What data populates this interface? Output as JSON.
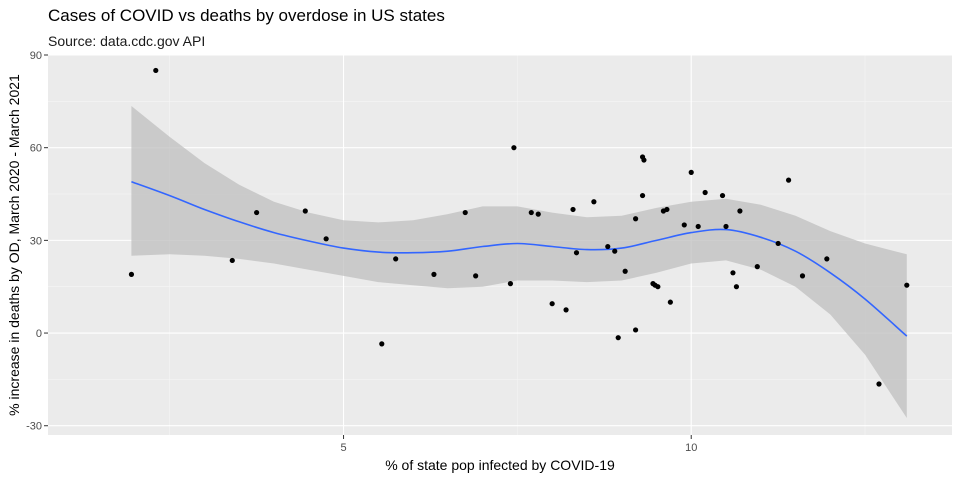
{
  "chart_data": {
    "type": "scatter",
    "title": "Cases of COVID vs deaths by overdose in US states",
    "subtitle": "Source: data.cdc.gov API",
    "xlabel": "% of state pop infected by COVID-19",
    "ylabel": "% increase in deaths by OD, March 2020 - March 2021",
    "xlim": [
      0.75,
      13.75
    ],
    "ylim": [
      -33,
      90
    ],
    "x_ticks": [
      5,
      10
    ],
    "y_ticks": [
      -30,
      0,
      30,
      60,
      90
    ],
    "grid": true,
    "points": [
      {
        "x": 1.95,
        "y": 19.0
      },
      {
        "x": 2.3,
        "y": 85.0
      },
      {
        "x": 3.4,
        "y": 23.5
      },
      {
        "x": 3.75,
        "y": 39.0
      },
      {
        "x": 4.45,
        "y": 39.5
      },
      {
        "x": 4.75,
        "y": 30.5
      },
      {
        "x": 5.55,
        "y": -3.5
      },
      {
        "x": 5.75,
        "y": 24.0
      },
      {
        "x": 6.3,
        "y": 19.0
      },
      {
        "x": 6.75,
        "y": 39.0
      },
      {
        "x": 6.9,
        "y": 18.5
      },
      {
        "x": 7.4,
        "y": 16.0
      },
      {
        "x": 7.45,
        "y": 60.0
      },
      {
        "x": 7.7,
        "y": 39.0
      },
      {
        "x": 7.8,
        "y": 38.5
      },
      {
        "x": 8.0,
        "y": 9.5
      },
      {
        "x": 8.2,
        "y": 7.5
      },
      {
        "x": 8.3,
        "y": 40.0
      },
      {
        "x": 8.35,
        "y": 26.0
      },
      {
        "x": 8.6,
        "y": 42.5
      },
      {
        "x": 8.8,
        "y": 28.0
      },
      {
        "x": 8.9,
        "y": 26.5
      },
      {
        "x": 8.95,
        "y": -1.5
      },
      {
        "x": 9.05,
        "y": 20.0
      },
      {
        "x": 9.2,
        "y": 37.0
      },
      {
        "x": 9.2,
        "y": 1.0
      },
      {
        "x": 9.3,
        "y": 57.0
      },
      {
        "x": 9.32,
        "y": 56.0
      },
      {
        "x": 9.3,
        "y": 44.5
      },
      {
        "x": 9.45,
        "y": 16.0
      },
      {
        "x": 9.48,
        "y": 15.5
      },
      {
        "x": 9.52,
        "y": 15.0
      },
      {
        "x": 9.6,
        "y": 39.5
      },
      {
        "x": 9.65,
        "y": 40.0
      },
      {
        "x": 9.7,
        "y": 10.0
      },
      {
        "x": 9.9,
        "y": 35.0
      },
      {
        "x": 10.0,
        "y": 52.0
      },
      {
        "x": 10.1,
        "y": 34.5
      },
      {
        "x": 10.2,
        "y": 45.5
      },
      {
        "x": 10.45,
        "y": 44.5
      },
      {
        "x": 10.5,
        "y": 34.5
      },
      {
        "x": 10.6,
        "y": 19.5
      },
      {
        "x": 10.65,
        "y": 15.0
      },
      {
        "x": 10.7,
        "y": 39.5
      },
      {
        "x": 10.95,
        "y": 21.5
      },
      {
        "x": 11.25,
        "y": 29.0
      },
      {
        "x": 11.4,
        "y": 49.5
      },
      {
        "x": 11.6,
        "y": 18.5
      },
      {
        "x": 11.95,
        "y": 24.0
      },
      {
        "x": 12.7,
        "y": -16.5
      },
      {
        "x": 13.1,
        "y": 15.5
      }
    ],
    "smooth": {
      "x": [
        1.95,
        2.5,
        3.0,
        3.5,
        4.0,
        4.5,
        5.0,
        5.5,
        6.0,
        6.5,
        7.0,
        7.5,
        8.0,
        8.5,
        9.0,
        9.5,
        10.0,
        10.5,
        11.0,
        11.5,
        12.0,
        12.5,
        13.1
      ],
      "y": [
        49.0,
        44.5,
        40.0,
        36.0,
        32.5,
        29.8,
        27.5,
        26.2,
        26.0,
        26.5,
        28.0,
        29.0,
        28.0,
        27.0,
        27.5,
        30.0,
        32.5,
        33.5,
        31.0,
        26.5,
        19.5,
        11.0,
        -1.0
      ],
      "lower": [
        25.0,
        25.5,
        25.0,
        24.0,
        22.5,
        20.5,
        18.5,
        16.5,
        15.5,
        14.5,
        15.0,
        17.0,
        17.0,
        16.5,
        17.0,
        19.5,
        22.5,
        23.5,
        20.5,
        15.0,
        6.0,
        -7.0,
        -27.5
      ],
      "upper": [
        73.5,
        63.5,
        55.0,
        48.0,
        42.5,
        39.0,
        36.5,
        35.8,
        36.5,
        38.5,
        41.0,
        41.0,
        39.0,
        37.5,
        38.0,
        40.5,
        42.5,
        43.5,
        41.5,
        38.0,
        33.0,
        29.0,
        25.5
      ]
    },
    "colors": {
      "panel": "#ebebeb",
      "grid_major": "#ffffff",
      "grid_minor": "#f5f5f5",
      "point": "#000000",
      "smooth_line": "#3366ff",
      "ribbon": "#bfbfbf"
    }
  }
}
